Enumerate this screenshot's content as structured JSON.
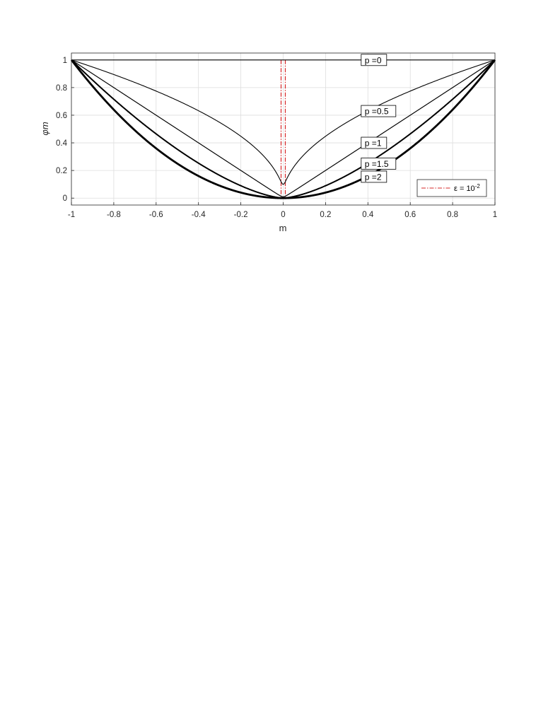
{
  "chart_data": {
    "type": "line",
    "xlabel": "m",
    "ylabel": "φm",
    "xlim": [
      -1,
      1
    ],
    "ylim": [
      -0.05,
      1.05
    ],
    "grid": true,
    "legend_position": "bottom-right",
    "x_ticks": [
      "-1",
      "-0.8",
      "-0.6",
      "-0.4",
      "-0.2",
      "0",
      "0.2",
      "0.4",
      "0.6",
      "0.8",
      "1"
    ],
    "y_ticks": [
      "0",
      "0.2",
      "0.4",
      "0.6",
      "0.8",
      "1"
    ],
    "x_tick_values": [
      -1,
      -0.8,
      -0.6,
      -0.4,
      -0.2,
      0,
      0.2,
      0.4,
      0.6,
      0.8,
      1
    ],
    "y_tick_values": [
      0,
      0.2,
      0.4,
      0.6,
      0.8,
      1
    ],
    "formula": "phi = (m^2 + eps^2)^(p/2)",
    "epsilon": 0.01,
    "series": [
      {
        "label": "p =0",
        "p": 0,
        "color": "#000000",
        "label_at_m": 0.385
      },
      {
        "label": "p =0.5",
        "p": 0.5,
        "color": "#000000",
        "label_at_m": 0.385
      },
      {
        "label": "p =1",
        "p": 1,
        "color": "#000000",
        "label_at_m": 0.385
      },
      {
        "label": "p =1.5",
        "p": 1.5,
        "color": "#000000",
        "label_at_m": 0.385
      },
      {
        "label": "p =2",
        "p": 2,
        "color": "#000000",
        "label_at_m": 0.385
      }
    ],
    "epsilon_markers": {
      "x": [
        -0.01,
        0.01
      ],
      "color": "#d62728",
      "style": "dash-dot"
    },
    "legend": {
      "entry_prefix": "ε = 10",
      "entry_exponent": "-2",
      "line_color": "#d62728"
    }
  }
}
